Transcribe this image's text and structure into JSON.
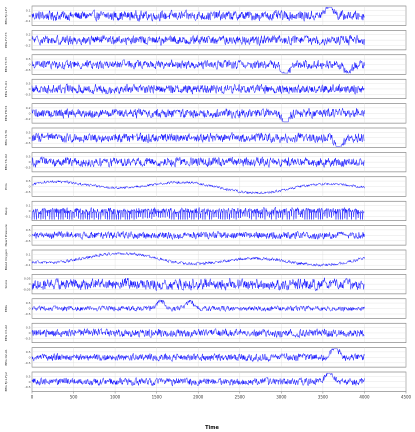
{
  "chart_data": {
    "type": "line",
    "layout": "stacked-subplots",
    "shared_x": true,
    "xlabel": "Time",
    "xlim": [
      0,
      4500
    ],
    "xticks": [
      0,
      500,
      1000,
      1500,
      2000,
      2500,
      3000,
      3500,
      4000,
      4500
    ],
    "n_points": 4000,
    "grid": true,
    "line_color": "#0000ff",
    "subplots": [
      {
        "ylabel": "EEG Fp1-F7",
        "ytick_labels": [
          "0.1",
          "0",
          "-0.1"
        ],
        "amplitude": 0.75,
        "events": [
          {
            "x": 3580,
            "amp": 1.4
          }
        ]
      },
      {
        "ylabel": "EEG F7-T3",
        "ytick_labels": [
          "0.2",
          "0",
          "-0.2"
        ],
        "amplitude": 0.7,
        "events": []
      },
      {
        "ylabel": "EEG T3-T5",
        "ytick_labels": [
          "0.5",
          "0",
          "-0.5"
        ],
        "amplitude": 0.65,
        "events": [
          {
            "x": 3050,
            "amp": -1.3
          },
          {
            "x": 3800,
            "amp": -1.0
          }
        ]
      },
      {
        "ylabel": "EEG T5-O1",
        "ytick_labels": [
          "0.5",
          "0",
          "-0.5"
        ],
        "amplitude": 0.7,
        "events": []
      },
      {
        "ylabel": "EEG F8-T4",
        "ytick_labels": [
          "0.2",
          "0",
          "-0.2"
        ],
        "amplitude": 0.7,
        "events": [
          {
            "x": 3050,
            "amp": -1.2
          }
        ]
      },
      {
        "ylabel": "EEG T4-T6",
        "ytick_labels": [
          "0.5",
          "0",
          "-0.5"
        ],
        "amplitude": 0.7,
        "events": [
          {
            "x": 3700,
            "amp": -1.4
          }
        ]
      },
      {
        "ylabel": "EEG T6-O2",
        "ytick_labels": [
          "0.5",
          "0",
          "-0.5"
        ],
        "amplitude": 0.7,
        "events": []
      },
      {
        "ylabel": "ECG",
        "ytick_labels": [
          "0.5",
          "0",
          "-0.5"
        ],
        "amplitude": 0.35,
        "events": [],
        "slow": true
      },
      {
        "ylabel": "Resp",
        "ytick_labels": [
          "0.1",
          "0",
          "-0.1"
        ],
        "amplitude": 0.5,
        "events": [],
        "spiky": true
      },
      {
        "ylabel": "Heart Pressure",
        "ytick_labels": [
          "0.5",
          "0",
          "-0.5"
        ],
        "amplitude": 0.55,
        "events": []
      },
      {
        "ylabel": "Blood Oxygen",
        "ytick_labels": [
          "0.1",
          "0",
          "-0.1"
        ],
        "amplitude": 0.4,
        "events": [],
        "slow": true
      },
      {
        "ylabel": "Snore",
        "ytick_labels": [
          "0.05",
          "0",
          "-0.05"
        ],
        "amplitude": 0.85,
        "events": []
      },
      {
        "ylabel": "EMG",
        "ytick_labels": [
          "0.5",
          "0",
          "-0.5"
        ],
        "amplitude": 0.4,
        "events": [
          {
            "x": 1550,
            "amp": 1.0
          },
          {
            "x": 1900,
            "amp": 0.9
          }
        ]
      },
      {
        "ylabel": "EEG C3-A2",
        "ytick_labels": [
          "0.5",
          "0",
          "-0.5"
        ],
        "amplitude": 0.6,
        "events": []
      },
      {
        "ylabel": "EEG O2-A1",
        "ytick_labels": [
          "0.5",
          "0",
          "-0.5"
        ],
        "amplitude": 0.55,
        "events": [
          {
            "x": 3650,
            "amp": 1.3
          }
        ]
      },
      {
        "ylabel": "EEG Fp1-Fp2",
        "ytick_labels": [
          "0.5",
          "0",
          "-0.5"
        ],
        "amplitude": 0.55,
        "events": [
          {
            "x": 3580,
            "amp": 1.3
          }
        ]
      }
    ]
  }
}
